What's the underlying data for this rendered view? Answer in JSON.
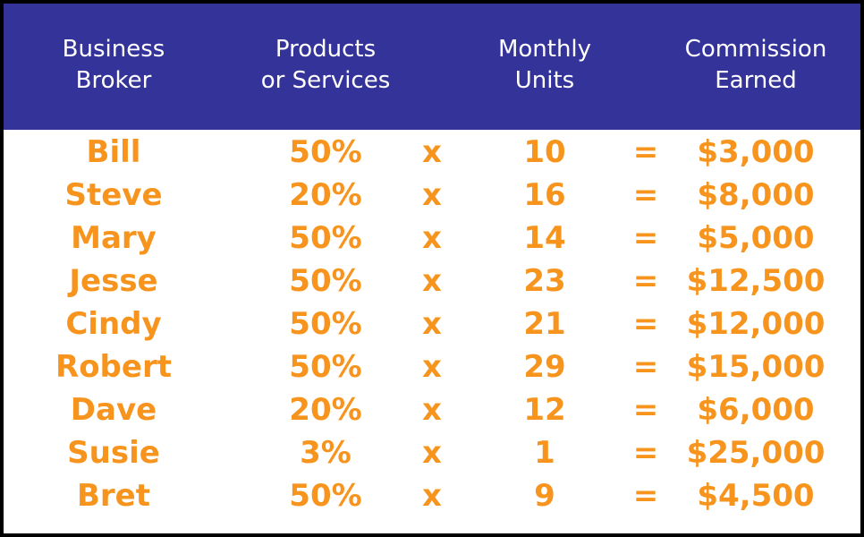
{
  "table": {
    "header": [
      [
        "Business",
        "Broker"
      ],
      [
        "Products",
        "or Services"
      ],
      [
        "Monthly",
        "Units"
      ],
      [
        "Commission",
        "Earned"
      ]
    ],
    "rows": [
      [
        "Bill",
        "50%",
        "x",
        "10",
        "=",
        "$3,000"
      ],
      [
        "Steve",
        "20%",
        "x",
        "16",
        "=",
        "$8,000"
      ],
      [
        "Mary",
        "50%",
        "x",
        "14",
        "=",
        "$5,000"
      ],
      [
        "Jesse",
        "50%",
        "x",
        "23",
        "=",
        "$12,500"
      ],
      [
        "Cindy",
        "50%",
        "x",
        "21",
        "=",
        "$12,000"
      ],
      [
        "Robert",
        "50%",
        "x",
        "29",
        "=",
        "$15,000"
      ],
      [
        "Dave",
        "20%",
        "x",
        "12",
        "=",
        "$6,000"
      ],
      [
        "Susie",
        "3%",
        "x",
        "1",
        "=",
        "$25,000"
      ],
      [
        "Bret",
        "50%",
        "x",
        "9",
        "=",
        "$4,500"
      ]
    ]
  }
}
